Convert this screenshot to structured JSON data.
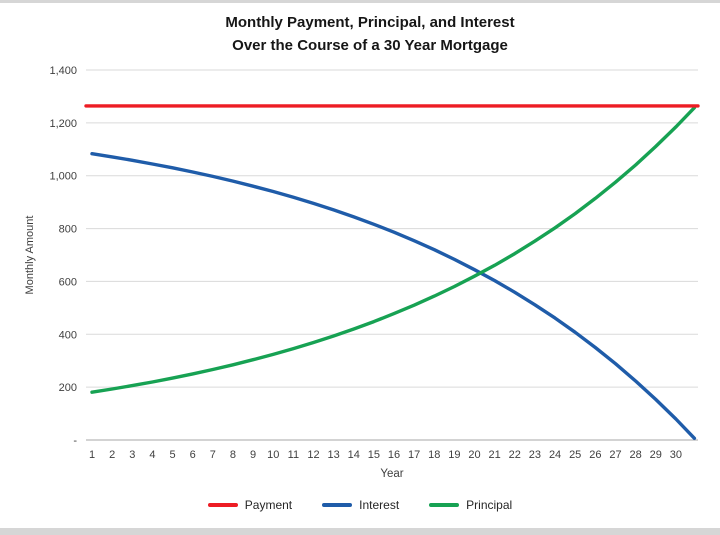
{
  "title": {
    "line1": "Monthly Payment, Principal, and Interest",
    "line2": "Over the Course of a 30 Year Mortgage"
  },
  "axes": {
    "y_label": "Monthly Amount",
    "x_label": "Year"
  },
  "chart_data": {
    "type": "line",
    "title": "Monthly Payment, Principal, and Interest Over the Course of a 30 Year Mortgage",
    "xlabel": "Year",
    "ylabel": "Monthly Amount",
    "ylim": [
      0,
      1400
    ],
    "grid": "horizontal",
    "legend_position": "bottom",
    "x": [
      1,
      2,
      3,
      4,
      5,
      6,
      7,
      8,
      9,
      10,
      11,
      12,
      13,
      14,
      15,
      16,
      17,
      18,
      19,
      20,
      21,
      22,
      23,
      24,
      25,
      26,
      27,
      28,
      29,
      30,
      30.92
    ],
    "xticks": [
      1,
      2,
      3,
      4,
      5,
      6,
      7,
      8,
      9,
      10,
      11,
      12,
      13,
      14,
      15,
      16,
      17,
      18,
      19,
      20,
      21,
      22,
      23,
      24,
      25,
      26,
      27,
      28,
      29,
      30
    ],
    "yticks": [
      {
        "value": 0,
        "label": "-"
      },
      {
        "value": 200,
        "label": "200"
      },
      {
        "value": 400,
        "label": "400"
      },
      {
        "value": 600,
        "label": "600"
      },
      {
        "value": 800,
        "label": "800"
      },
      {
        "value": 1000,
        "label": "1,000"
      },
      {
        "value": 1200,
        "label": "1,200"
      },
      {
        "value": 1400,
        "label": "1,400"
      }
    ],
    "series": [
      {
        "name": "Payment",
        "color": "#ed1c24",
        "full_width": true,
        "values": [
          1264.1,
          1264.1,
          1264.1,
          1264.1,
          1264.1,
          1264.1,
          1264.1,
          1264.1,
          1264.1,
          1264.1,
          1264.1,
          1264.1,
          1264.1,
          1264.1,
          1264.1,
          1264.1,
          1264.1,
          1264.1,
          1264.1,
          1264.1,
          1264.1,
          1264.1,
          1264.1,
          1264.1,
          1264.1,
          1264.1,
          1264.1,
          1264.1,
          1264.1,
          1264.1,
          1264.1
        ]
      },
      {
        "name": "Interest",
        "color": "#1f5ca9",
        "values": [
          1083.3,
          1071.2,
          1058.3,
          1044.5,
          1029.8,
          1014.1,
          997.4,
          979.5,
          960.5,
          940.1,
          918.4,
          895.3,
          870.6,
          844.2,
          816.1,
          786.1,
          754.0,
          719.9,
          683.4,
          644.5,
          603.1,
          558.8,
          511.5,
          461.1,
          407.4,
          350.0,
          288.8,
          223.4,
          153.7,
          79.4,
          6.6
        ]
      },
      {
        "name": "Principal",
        "color": "#17a253",
        "values": [
          180.8,
          192.9,
          205.8,
          219.6,
          234.3,
          250.0,
          266.8,
          284.6,
          303.7,
          324.0,
          345.7,
          368.9,
          393.6,
          420.0,
          448.1,
          478.1,
          510.1,
          544.3,
          580.7,
          619.6,
          661.1,
          705.4,
          752.6,
          803.0,
          856.8,
          914.2,
          975.4,
          1040.7,
          1110.4,
          1184.8,
          1257.5
        ]
      }
    ]
  }
}
